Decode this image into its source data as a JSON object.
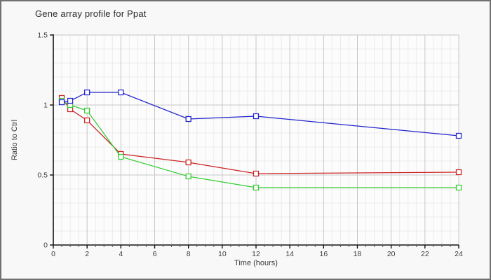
{
  "title": "Gene array profile for Ppat",
  "chart_data": {
    "type": "line",
    "title": "Gene array profile for Ppat",
    "xlabel": "Time (hours)",
    "ylabel": "Ratio to Ctrl",
    "x": [
      0.5,
      1,
      2,
      4,
      8,
      12,
      24
    ],
    "series": [
      {
        "name": "red",
        "color": "#cc2222",
        "values": [
          1.05,
          0.97,
          0.89,
          0.65,
          0.59,
          0.51,
          0.52
        ]
      },
      {
        "name": "green",
        "color": "#33cc33",
        "values": [
          1.03,
          1.0,
          0.96,
          0.63,
          0.49,
          0.41,
          0.41
        ]
      },
      {
        "name": "blue",
        "color": "#2222cc",
        "values": [
          1.02,
          1.03,
          1.09,
          1.09,
          0.9,
          0.92,
          0.78
        ]
      }
    ],
    "xlim": [
      0,
      24
    ],
    "ylim": [
      0,
      1.5
    ],
    "x_ticks": {
      "values": [
        0,
        2,
        4,
        6,
        8,
        10,
        12,
        14,
        16,
        18,
        20,
        22,
        24
      ],
      "labels": [
        "0",
        "2",
        "4",
        "6",
        "8",
        "10",
        "12",
        "14",
        "16",
        "18",
        "20",
        "22",
        "24"
      ]
    },
    "y_ticks": {
      "values": [
        0,
        0.5,
        1,
        1.5
      ],
      "labels": [
        "0",
        "0.5",
        "1",
        "1.5"
      ]
    },
    "x_minor_step": 0.5,
    "y_minor_step": 0.1,
    "grid": true,
    "legend": "none",
    "marker": "open-square"
  }
}
